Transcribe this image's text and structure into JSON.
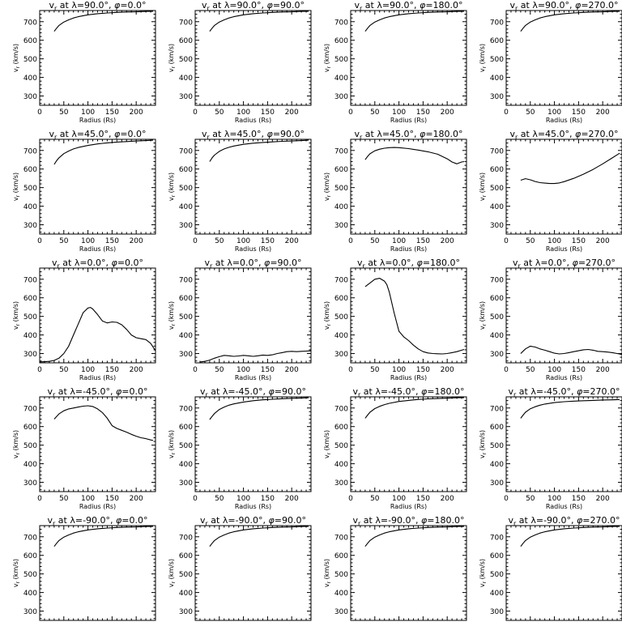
{
  "chart_data": {
    "type": "line",
    "title_prefix": "v",
    "title_subscript": "r",
    "title_at": " at ",
    "lambda_symbol": "λ",
    "phi_symbol": "φ",
    "degree": "°",
    "xlabel": "Radius (Rs)",
    "ylabel_v": "v",
    "ylabel_sub": "r",
    "ylabel_units": " (km/s)",
    "xlim": [
      0,
      240
    ],
    "ylim": [
      250,
      760
    ],
    "xticks": [
      0,
      50,
      100,
      150,
      200
    ],
    "yticks": [
      300,
      400,
      500,
      600,
      700
    ],
    "x_minor_step": 10,
    "y_minor_step": 20,
    "panels": [
      {
        "lambda": "90.0",
        "phi": "0.0",
        "x": [
          30,
          35,
          40,
          50,
          60,
          70,
          80,
          100,
          120,
          140,
          160,
          180,
          200,
          220,
          235
        ],
        "y": [
          648,
          665,
          680,
          698,
          710,
          720,
          727,
          737,
          743,
          747,
          750,
          752,
          753,
          755,
          756
        ]
      },
      {
        "lambda": "90.0",
        "phi": "90.0",
        "x": [
          30,
          35,
          40,
          50,
          60,
          70,
          80,
          100,
          120,
          140,
          160,
          180,
          200,
          220,
          235
        ],
        "y": [
          648,
          665,
          680,
          698,
          710,
          720,
          727,
          737,
          743,
          747,
          750,
          752,
          753,
          755,
          756
        ]
      },
      {
        "lambda": "90.0",
        "phi": "180.0",
        "x": [
          30,
          35,
          40,
          50,
          60,
          70,
          80,
          100,
          120,
          140,
          160,
          180,
          200,
          220,
          235
        ],
        "y": [
          648,
          665,
          680,
          698,
          710,
          720,
          727,
          737,
          743,
          747,
          750,
          752,
          753,
          755,
          756
        ]
      },
      {
        "lambda": "90.0",
        "phi": "270.0",
        "x": [
          30,
          35,
          40,
          50,
          60,
          70,
          80,
          100,
          120,
          140,
          160,
          180,
          200,
          220,
          235
        ],
        "y": [
          648,
          665,
          680,
          698,
          710,
          720,
          727,
          737,
          743,
          747,
          750,
          752,
          753,
          755,
          756
        ]
      },
      {
        "lambda": "45.0",
        "phi": "0.0",
        "x": [
          30,
          35,
          40,
          50,
          60,
          70,
          80,
          100,
          120,
          140,
          160,
          180,
          200,
          220,
          235
        ],
        "y": [
          625,
          645,
          660,
          683,
          697,
          708,
          716,
          727,
          735,
          741,
          745,
          748,
          751,
          753,
          755
        ]
      },
      {
        "lambda": "45.0",
        "phi": "90.0",
        "x": [
          30,
          35,
          40,
          50,
          60,
          70,
          80,
          100,
          120,
          140,
          160,
          180,
          200,
          220,
          235
        ],
        "y": [
          640,
          660,
          675,
          695,
          708,
          717,
          724,
          733,
          739,
          743,
          746,
          749,
          751,
          753,
          755
        ]
      },
      {
        "lambda": "45.0",
        "phi": "180.0",
        "x": [
          30,
          35,
          40,
          50,
          60,
          70,
          80,
          90,
          100,
          120,
          140,
          160,
          180,
          200,
          210,
          220,
          230,
          235
        ],
        "y": [
          650,
          668,
          682,
          698,
          707,
          712,
          715,
          716,
          715,
          710,
          702,
          693,
          680,
          655,
          638,
          628,
          638,
          640
        ]
      },
      {
        "lambda": "45.0",
        "phi": "270.0",
        "x": [
          30,
          40,
          50,
          60,
          70,
          80,
          90,
          100,
          110,
          120,
          140,
          160,
          180,
          200,
          220,
          235
        ],
        "y": [
          540,
          548,
          542,
          533,
          527,
          524,
          522,
          522,
          525,
          532,
          550,
          572,
          598,
          628,
          660,
          685
        ]
      },
      {
        "lambda": "0.0",
        "phi": "0.0",
        "x": [
          0,
          20,
          30,
          40,
          50,
          60,
          70,
          80,
          90,
          100,
          105,
          110,
          120,
          130,
          140,
          150,
          160,
          170,
          180,
          190,
          200,
          210,
          220,
          230,
          240
        ],
        "y": [
          255,
          258,
          263,
          275,
          300,
          340,
          400,
          460,
          520,
          545,
          548,
          540,
          510,
          475,
          465,
          470,
          468,
          455,
          430,
          400,
          385,
          380,
          375,
          355,
          315
        ]
      },
      {
        "lambda": "0.0",
        "phi": "90.0",
        "x": [
          10,
          20,
          30,
          40,
          50,
          60,
          70,
          80,
          90,
          100,
          110,
          120,
          130,
          140,
          150,
          160,
          170,
          180,
          190,
          200,
          210,
          220,
          230,
          240
        ],
        "y": [
          255,
          258,
          265,
          275,
          283,
          290,
          288,
          285,
          287,
          290,
          288,
          285,
          288,
          292,
          290,
          293,
          300,
          305,
          310,
          312,
          310,
          312,
          313,
          315
        ]
      },
      {
        "lambda": "0.0",
        "phi": "180.0",
        "x": [
          30,
          40,
          50,
          60,
          70,
          75,
          80,
          90,
          100,
          110,
          120,
          130,
          140,
          150,
          160,
          170,
          180,
          190,
          200,
          210,
          220,
          230,
          235
        ],
        "y": [
          660,
          680,
          700,
          705,
          690,
          670,
          630,
          520,
          420,
          390,
          370,
          345,
          325,
          310,
          303,
          300,
          299,
          298,
          300,
          305,
          310,
          318,
          322
        ]
      },
      {
        "lambda": "0.0",
        "phi": "270.0",
        "x": [
          30,
          40,
          50,
          60,
          70,
          80,
          90,
          100,
          110,
          120,
          130,
          140,
          150,
          160,
          170,
          180,
          190,
          200,
          210,
          220,
          230,
          240
        ],
        "y": [
          300,
          325,
          340,
          335,
          325,
          318,
          310,
          302,
          298,
          300,
          305,
          310,
          315,
          320,
          322,
          318,
          312,
          310,
          308,
          305,
          300,
          295
        ]
      },
      {
        "lambda": "-45.0",
        "phi": "0.0",
        "x": [
          30,
          40,
          50,
          60,
          70,
          80,
          90,
          100,
          110,
          120,
          130,
          140,
          150,
          160,
          170,
          180,
          190,
          200,
          210,
          220,
          230,
          235
        ],
        "y": [
          640,
          668,
          685,
          695,
          700,
          705,
          710,
          712,
          708,
          695,
          675,
          645,
          605,
          590,
          580,
          570,
          558,
          548,
          540,
          535,
          528,
          525
        ]
      },
      {
        "lambda": "-45.0",
        "phi": "90.0",
        "x": [
          30,
          35,
          40,
          50,
          60,
          70,
          80,
          100,
          120,
          140,
          160,
          180,
          200,
          220,
          235
        ],
        "y": [
          638,
          655,
          670,
          692,
          705,
          715,
          722,
          732,
          739,
          744,
          747,
          750,
          752,
          754,
          755
        ]
      },
      {
        "lambda": "-45.0",
        "phi": "180.0",
        "x": [
          30,
          35,
          40,
          50,
          60,
          70,
          80,
          100,
          120,
          140,
          160,
          180,
          200,
          220,
          235
        ],
        "y": [
          645,
          662,
          677,
          697,
          709,
          718,
          725,
          735,
          741,
          746,
          749,
          751,
          753,
          755,
          756
        ]
      },
      {
        "lambda": "-45.0",
        "phi": "270.0",
        "x": [
          30,
          35,
          40,
          50,
          60,
          70,
          80,
          100,
          120,
          140,
          160,
          180,
          200,
          220,
          235
        ],
        "y": [
          645,
          662,
          677,
          696,
          707,
          715,
          721,
          729,
          734,
          737,
          739,
          741,
          743,
          744,
          745
        ]
      },
      {
        "lambda": "-90.0",
        "phi": "0.0",
        "x": [
          30,
          35,
          40,
          50,
          60,
          70,
          80,
          100,
          120,
          140,
          160,
          180,
          200,
          220,
          235
        ],
        "y": [
          648,
          665,
          680,
          698,
          710,
          720,
          727,
          737,
          743,
          747,
          750,
          752,
          753,
          755,
          756
        ]
      },
      {
        "lambda": "-90.0",
        "phi": "90.0",
        "x": [
          30,
          35,
          40,
          50,
          60,
          70,
          80,
          100,
          120,
          140,
          160,
          180,
          200,
          220,
          235
        ],
        "y": [
          648,
          665,
          680,
          698,
          710,
          720,
          727,
          737,
          743,
          747,
          750,
          752,
          753,
          755,
          756
        ]
      },
      {
        "lambda": "-90.0",
        "phi": "180.0",
        "x": [
          30,
          35,
          40,
          50,
          60,
          70,
          80,
          100,
          120,
          140,
          160,
          180,
          200,
          220,
          235
        ],
        "y": [
          648,
          665,
          680,
          698,
          710,
          720,
          727,
          737,
          743,
          747,
          750,
          752,
          753,
          755,
          756
        ]
      },
      {
        "lambda": "-90.0",
        "phi": "270.0",
        "x": [
          30,
          35,
          40,
          50,
          60,
          70,
          80,
          100,
          120,
          140,
          160,
          180,
          200,
          220,
          235
        ],
        "y": [
          648,
          665,
          680,
          698,
          710,
          720,
          727,
          737,
          743,
          747,
          750,
          752,
          753,
          755,
          756
        ]
      }
    ]
  }
}
